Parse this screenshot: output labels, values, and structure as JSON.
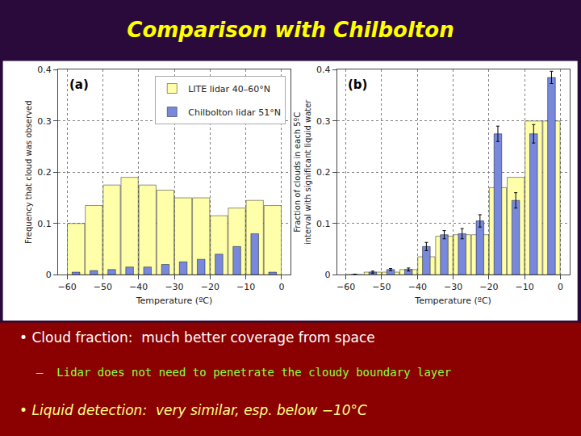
{
  "title": "Comparison with Chilbolton",
  "color": "#FFFF00",
  "annotations": [
    {
      "text": "• Cloud fraction:  much better coverage from space",
      "color": "#FFFFFF"
    },
    {
      "text": "–  Lidar does not need to penetrate the cloudy boundary layer",
      "color": "#88FF44"
    },
    {
      "text": "• Liquid detection:  very similar, esp. below −10°C",
      "color": "#FFFF88"
    }
  ],
  "chart_data": [
    {
      "type": "bar",
      "title": "(a)",
      "x": [
        -57.5,
        -52.5,
        -47.5,
        -42.5,
        -37.5,
        -32.5,
        -27.5,
        -22.5,
        -17.5,
        -12.5,
        -7.5,
        -2.5
      ],
      "series": [
        {
          "name": "LITE lidar 40–60°N",
          "color": "#FFFFAA",
          "values": [
            0.1,
            0.135,
            0.175,
            0.19,
            0.175,
            0.165,
            0.15,
            0.15,
            0.115,
            0.13,
            0.145,
            0.135
          ]
        },
        {
          "name": "Chilbolton lidar 51°N",
          "color": "#7788DD",
          "values": [
            0.005,
            0.008,
            0.01,
            0.015,
            0.015,
            0.02,
            0.025,
            0.03,
            0.04,
            0.055,
            0.08,
            0.005
          ]
        }
      ],
      "xlabel": "Temperature (ºC)",
      "ylabel": "Frequency that cloud was observed",
      "xlim": [
        -62.5,
        2.5
      ],
      "xticks": [
        {
          "value": -60,
          "label": "−60"
        },
        {
          "value": -50,
          "label": "−50"
        },
        {
          "value": -40,
          "label": "−40"
        },
        {
          "value": -30,
          "label": "−30"
        },
        {
          "value": -20,
          "label": "−20"
        },
        {
          "value": -10,
          "label": "−10"
        },
        0
      ],
      "ylim": [
        0,
        0.4
      ],
      "yticks": [
        0,
        0.1,
        0.2,
        0.3,
        0.4
      ],
      "grid": true,
      "legend": "upper right"
    },
    {
      "type": "bar",
      "title": "(b)",
      "x": [
        -57.5,
        -52.5,
        -47.5,
        -42.5,
        -37.5,
        -32.5,
        -27.5,
        -22.5,
        -17.5,
        -12.5,
        -7.5,
        -2.5
      ],
      "series": [
        {
          "name": "LITE lidar 40–60°N",
          "color": "#FFFFAA",
          "values": [
            0.0,
            0.005,
            0.005,
            0.01,
            0.035,
            0.075,
            0.078,
            0.078,
            0.17,
            0.19,
            0.3,
            0.3
          ]
        },
        {
          "name": "Chilbolton lidar 51°N",
          "color": "#7788DD",
          "values": [
            0.0,
            0.005,
            0.01,
            0.01,
            0.055,
            0.078,
            0.08,
            0.105,
            0.275,
            0.145,
            0.275,
            0.385
          ],
          "errors": [
            0.001,
            0.002,
            0.002,
            0.003,
            0.008,
            0.008,
            0.01,
            0.012,
            0.015,
            0.015,
            0.018,
            0.012
          ]
        }
      ],
      "xlabel": "Temperature (ºC)",
      "ylabel": "Fraction of clouds in each 5ºC\ninterval with significant liquid water",
      "xlim": [
        -62.5,
        2.5
      ],
      "xticks": [
        {
          "value": -60,
          "label": "−60"
        },
        {
          "value": -50,
          "label": "−50"
        },
        {
          "value": -40,
          "label": "−40"
        },
        {
          "value": -30,
          "label": "−30"
        },
        {
          "value": -20,
          "label": "−20"
        },
        {
          "value": -10,
          "label": "−10"
        },
        0
      ],
      "ylim": [
        0,
        0.4
      ],
      "yticks": [
        0,
        0.1,
        0.2,
        0.3,
        0.4
      ],
      "grid": true
    }
  ]
}
